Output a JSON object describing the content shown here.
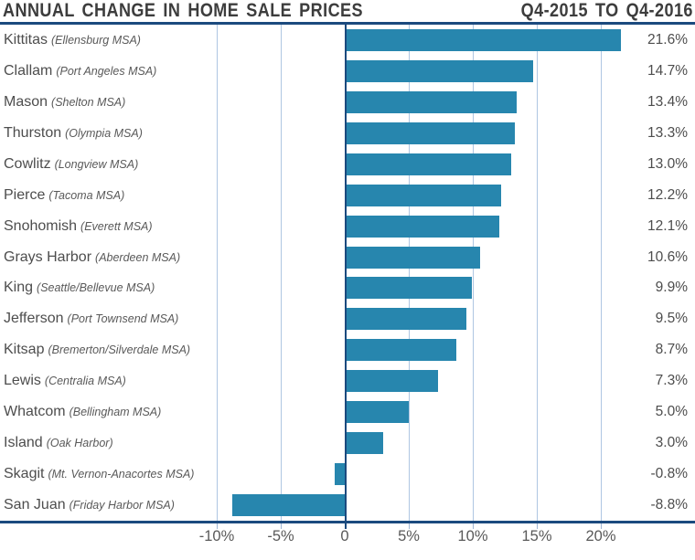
{
  "header": {
    "title_left": "ANNUAL CHANGE IN HOME SALE PRICES",
    "title_right": "Q4-2015 TO Q4-2016"
  },
  "chart_data": {
    "type": "bar",
    "orientation": "horizontal",
    "title": "ANNUAL CHANGE IN HOME SALE PRICES",
    "subtitle": "Q4-2015 TO Q4-2016",
    "categories": [
      "Kittitas",
      "Clallam",
      "Mason",
      "Thurston",
      "Cowlitz",
      "Pierce",
      "Snohomish",
      "Grays Harbor",
      "King",
      "Jefferson",
      "Kitsap",
      "Lewis",
      "Whatcom",
      "Island",
      "Skagit",
      "San Juan"
    ],
    "category_notes": [
      "(Ellensburg MSA)",
      "(Port Angeles MSA)",
      "(Shelton MSA)",
      "(Olympia MSA)",
      "(Longview MSA)",
      "(Tacoma MSA)",
      "(Everett MSA)",
      "(Aberdeen MSA)",
      "(Seattle/Bellevue MSA)",
      "(Port Townsend MSA)",
      "(Bremerton/Silverdale MSA)",
      "(Centralia MSA)",
      "(Bellingham MSA)",
      "(Oak Harbor)",
      "(Mt. Vernon-Anacortes MSA)",
      "(Friday Harbor MSA)"
    ],
    "values": [
      21.6,
      14.7,
      13.4,
      13.3,
      13.0,
      12.2,
      12.1,
      10.6,
      9.9,
      9.5,
      8.7,
      7.3,
      5.0,
      3.0,
      -0.8,
      -8.8
    ],
    "value_labels": [
      "21.6%",
      "14.7%",
      "13.4%",
      "13.3%",
      "13.0%",
      "12.2%",
      "12.1%",
      "10.6%",
      "9.9%",
      "9.5%",
      "8.7%",
      "7.3%",
      "5.0%",
      "3.0%",
      "-0.8%",
      "-8.8%"
    ],
    "xlabel": "",
    "ylabel": "",
    "x_ticks": [
      -10,
      -5,
      0,
      5,
      10,
      15,
      20
    ],
    "x_tick_labels": [
      "-10%",
      "-5%",
      "0",
      "5%",
      "10%",
      "15%",
      "20%"
    ],
    "xlim": [
      -10,
      20
    ],
    "grid": true,
    "legend": "none",
    "colors": {
      "bar": "#2786ae",
      "axis_line": "#1b4a7e",
      "gridline": "#aec6e2",
      "text": "#4d4d4d"
    }
  }
}
